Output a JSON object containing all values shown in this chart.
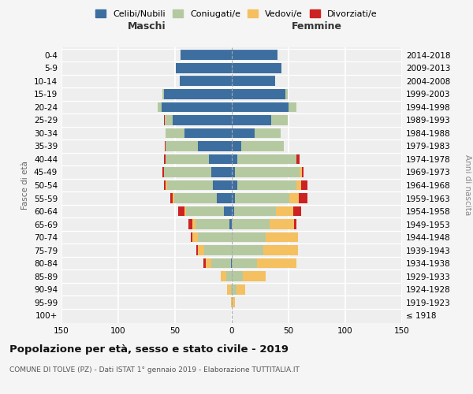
{
  "age_groups": [
    "100+",
    "95-99",
    "90-94",
    "85-89",
    "80-84",
    "75-79",
    "70-74",
    "65-69",
    "60-64",
    "55-59",
    "50-54",
    "45-49",
    "40-44",
    "35-39",
    "30-34",
    "25-29",
    "20-24",
    "15-19",
    "10-14",
    "5-9",
    "0-4"
  ],
  "birth_years": [
    "≤ 1918",
    "1919-1923",
    "1924-1928",
    "1929-1933",
    "1934-1938",
    "1939-1943",
    "1944-1948",
    "1949-1953",
    "1954-1958",
    "1959-1963",
    "1964-1968",
    "1969-1973",
    "1974-1978",
    "1979-1983",
    "1984-1988",
    "1989-1993",
    "1994-1998",
    "1999-2003",
    "2004-2008",
    "2009-2013",
    "2014-2018"
  ],
  "males_celibi": [
    0,
    0,
    0,
    0,
    1,
    0,
    0,
    2,
    7,
    13,
    17,
    18,
    20,
    30,
    42,
    52,
    62,
    60,
    46,
    49,
    45
  ],
  "males_coniugati": [
    0,
    0,
    1,
    5,
    17,
    24,
    30,
    30,
    33,
    38,
    40,
    42,
    38,
    28,
    16,
    7,
    3,
    1,
    0,
    0,
    0
  ],
  "males_vedovi": [
    0,
    1,
    3,
    5,
    5,
    6,
    5,
    3,
    2,
    1,
    1,
    0,
    0,
    0,
    0,
    0,
    0,
    0,
    0,
    0,
    0
  ],
  "males_divorziati": [
    0,
    0,
    0,
    0,
    2,
    1,
    1,
    3,
    5,
    2,
    2,
    1,
    2,
    1,
    0,
    1,
    0,
    0,
    0,
    0,
    0
  ],
  "females_nubili": [
    0,
    0,
    0,
    0,
    0,
    0,
    0,
    0,
    2,
    3,
    5,
    3,
    5,
    8,
    20,
    35,
    50,
    47,
    38,
    44,
    40
  ],
  "females_coniugate": [
    0,
    1,
    4,
    10,
    22,
    28,
    30,
    33,
    37,
    48,
    52,
    57,
    52,
    38,
    23,
    14,
    7,
    2,
    0,
    0,
    0
  ],
  "females_vedove": [
    0,
    2,
    8,
    20,
    35,
    30,
    28,
    22,
    15,
    8,
    4,
    2,
    0,
    0,
    0,
    0,
    0,
    0,
    0,
    0,
    0
  ],
  "females_divorziate": [
    0,
    0,
    0,
    0,
    0,
    0,
    0,
    2,
    7,
    8,
    6,
    1,
    3,
    0,
    0,
    0,
    0,
    0,
    0,
    0,
    0
  ],
  "color_celibi": "#3d6ea0",
  "color_coniugati": "#b5c9a0",
  "color_vedovi": "#f5c060",
  "color_divorziati": "#cc2222",
  "bg_color": "#eeeeee",
  "title": "Popolazione per età, sesso e stato civile - 2019",
  "subtitle": "COMUNE DI TOLVE (PZ) - Dati ISTAT 1° gennaio 2019 - Elaborazione TUTTITALIA.IT"
}
